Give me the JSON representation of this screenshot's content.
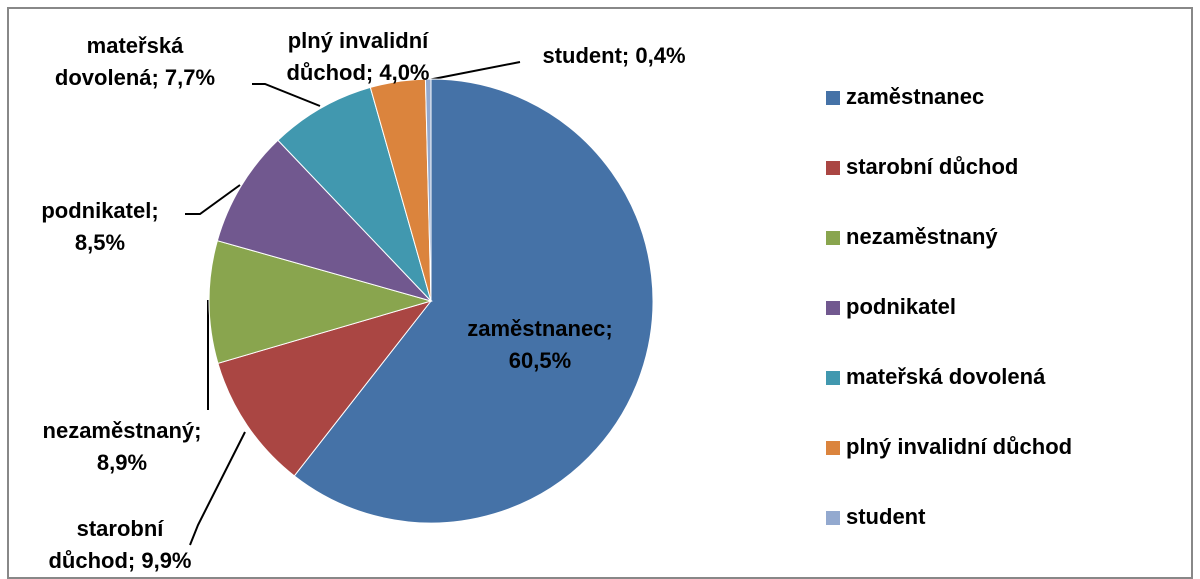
{
  "chart_data": {
    "type": "pie",
    "categories": [
      "zaměstnanec",
      "starobní důchod",
      "nezaměstnaný",
      "podnikatel",
      "mateřská dovolená",
      "plný invalidní důchod",
      "student"
    ],
    "values": [
      60.5,
      9.9,
      8.9,
      8.5,
      7.7,
      4.0,
      0.4
    ],
    "value_labels": [
      [
        "zaměstnanec;",
        "60,5%"
      ],
      [
        "starobní",
        "důchod; 9,9%"
      ],
      [
        "nezaměstnaný;",
        "8,9%"
      ],
      [
        "podnikatel;",
        "8,5%"
      ],
      [
        "mateřská",
        "dovolená; 7,7%"
      ],
      [
        "plný invalidní",
        "důchod; 4,0%"
      ],
      [
        "student; 0,4%"
      ]
    ],
    "colors": [
      "#4572A7",
      "#AA4643",
      "#89A54E",
      "#71588F",
      "#4198AF",
      "#DB843D",
      "#93A9CF"
    ],
    "legend": "right"
  }
}
